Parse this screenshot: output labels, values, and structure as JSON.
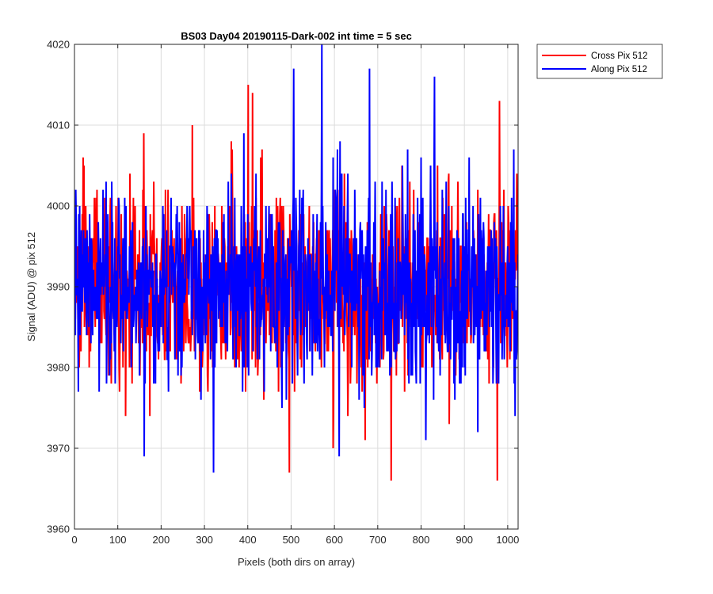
{
  "chart_data": {
    "type": "line",
    "title": "BS03 Day04 20190115-Dark-002 int time = 5 sec",
    "xlabel": "Pixels (both dirs on array)",
    "ylabel": "Signal (ADU) @ pix 512",
    "xlim": [
      0,
      1024
    ],
    "ylim": [
      3960,
      4020
    ],
    "xticks": [
      0,
      100,
      200,
      300,
      400,
      500,
      600,
      700,
      800,
      900,
      1000
    ],
    "yticks": [
      3960,
      3970,
      3980,
      3990,
      4000,
      4010,
      4020
    ],
    "grid": true,
    "legend_position": "outside top-right",
    "series": [
      {
        "name": "Cross Pix 512",
        "color": "#ff0000",
        "n_points": 1024,
        "mean": 3990,
        "std": 6,
        "min": 3966,
        "max": 4015,
        "notable_peaks": [
          [
            400,
            4015
          ],
          [
            410,
            4014
          ],
          [
            980,
            4013
          ]
        ],
        "notable_troughs": [
          [
            730,
            3966
          ],
          [
            975,
            3966
          ],
          [
            495,
            3967
          ]
        ]
      },
      {
        "name": "Along Pix 512",
        "color": "#0000ff",
        "n_points": 1024,
        "mean": 3990,
        "std": 6,
        "min": 3967,
        "max": 4020,
        "notable_peaks": [
          [
            570,
            4020
          ],
          [
            505,
            4017
          ],
          [
            680,
            4017
          ],
          [
            830,
            4016
          ]
        ],
        "notable_troughs": [
          [
            320,
            3967
          ],
          [
            160,
            3969
          ],
          [
            610,
            3969
          ]
        ]
      }
    ]
  }
}
